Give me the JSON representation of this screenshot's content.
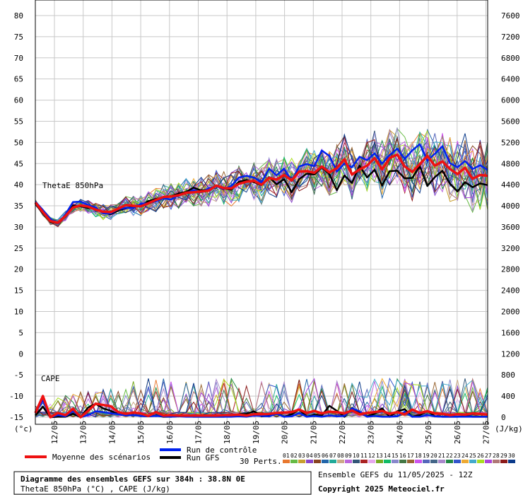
{
  "chart_data": {
    "type": "line",
    "grid": true,
    "left_axis": {
      "unit_label": "(°c)",
      "ticks": [
        -15,
        -10,
        -5,
        0,
        5,
        10,
        15,
        20,
        25,
        30,
        35,
        40,
        45,
        50,
        55,
        60,
        65,
        70,
        75,
        80
      ],
      "range": [
        -15,
        80
      ]
    },
    "right_axis": {
      "unit_label": "(J/kg)",
      "ticks": [
        0,
        400,
        800,
        1200,
        1600,
        2000,
        2400,
        2800,
        3200,
        3600,
        4000,
        4400,
        4800,
        5200,
        5600,
        6000,
        6400,
        6800,
        7200,
        7600
      ],
      "range": [
        -800,
        7600
      ]
    },
    "x_dates": [
      "12/05",
      "13/05",
      "14/05",
      "15/05",
      "16/05",
      "17/05",
      "18/05",
      "19/05",
      "20/05",
      "21/05",
      "22/05",
      "23/05",
      "24/05",
      "25/05",
      "26/05",
      "27/05"
    ],
    "panel_labels": {
      "thetae": "ThetaE 850hPa",
      "cape": "CAPE"
    },
    "series": [
      {
        "name": "Moyenne des scénarios",
        "color": "#ee1111",
        "thetae": [
          35.8,
          33.5,
          31.4,
          31.0,
          32.6,
          34.6,
          35.1,
          34.8,
          34.1,
          33.6,
          33.5,
          34.3,
          35.2,
          35.0,
          34.9,
          35.6,
          36.4,
          37.1,
          37.2,
          37.5,
          38.1,
          38.2,
          38.4,
          38.6,
          39.8,
          39.2,
          39.1,
          40.2,
          40.7,
          40.9,
          40.0,
          41.6,
          41.2,
          42.3,
          41.0,
          43.1,
          43.2,
          42.8,
          44.3,
          42.9,
          43.9,
          46.0,
          42.4,
          43.6,
          44.5,
          46.3,
          43.6,
          46.3,
          47.1,
          44.3,
          43.0,
          44.9,
          46.8,
          44.5,
          45.5,
          43.7,
          42.5,
          44.0,
          41.4,
          42.3,
          42.1
        ],
        "cape": [
          -14,
          -10,
          -15,
          -14,
          -14.5,
          -13,
          -15,
          -13.5,
          -11.8,
          -12.1,
          -12.4,
          -13.8,
          -14.2,
          -13.9,
          -14.1,
          -14.7,
          -13.8,
          -14.6,
          -14.5,
          -14.6,
          -14.6,
          -14.6,
          -14.6,
          -14.6,
          -14.6,
          -14.5,
          -14.5,
          -14.4,
          -14.6,
          -14.3,
          -14.3,
          -14.2,
          -14.0,
          -13.9,
          -13.8,
          -13.2,
          -14.0,
          -13.5,
          -14.1,
          -13.7,
          -13.8,
          -14.1,
          -13.4,
          -14.3,
          -14.0,
          -13.8,
          -13.5,
          -14.2,
          -13.8,
          -14.3,
          -13.2,
          -14.0,
          -13.6,
          -14.1,
          -14.2,
          -14.5,
          -14.3,
          -14.4,
          -14.1,
          -14.2,
          -14.4
        ]
      },
      {
        "name": "Run de contrôle",
        "color": "#0022ee",
        "thetae": [
          36.0,
          34.0,
          31.9,
          30.8,
          33.0,
          35.9,
          36.0,
          35.2,
          34.6,
          33.2,
          33.2,
          34.2,
          34.5,
          34.5,
          35.5,
          35.6,
          36.1,
          36.8,
          36.5,
          37.5,
          38.0,
          38.7,
          38.2,
          39.1,
          39.6,
          39.0,
          39.7,
          41.7,
          42.1,
          41.7,
          40.5,
          43.8,
          42.2,
          43.8,
          40.8,
          44.3,
          44.9,
          44.4,
          48.1,
          46.8,
          43.1,
          45.0,
          44.1,
          46.6,
          45.8,
          47.4,
          45.0,
          47.0,
          48.5,
          46.1,
          48.1,
          49.6,
          45.7,
          47.3,
          49.1,
          45.1,
          44.1,
          45.6,
          43.7,
          44.6,
          43.5
        ],
        "cape": [
          -14,
          -11,
          -15,
          -14.5,
          -14.8,
          -13.5,
          -15,
          -14.5,
          -13.6,
          -13.8,
          -14.1,
          -14.3,
          -14.6,
          -14.5,
          -14.7,
          -14.8,
          -14.7,
          -14.8,
          -14.9,
          -14.8,
          -14.9,
          -14.9,
          -14.9,
          -14.9,
          -14.9,
          -14.9,
          -14.9,
          -14.8,
          -14.9,
          -14.6,
          -14.7,
          -14.8,
          -14.2,
          -14.9,
          -14.8,
          -14.0,
          -14.9,
          -14.7,
          -14.9,
          -14.6,
          -14.8,
          -14.7,
          -12.9,
          -13.6,
          -14.9,
          -14.7,
          -14.9,
          -14.9,
          -14.8,
          -13.7,
          -14.9,
          -14.9,
          -14.5,
          -14.8,
          -14.9,
          -14.9,
          -14.9,
          -14.9,
          -14.9,
          -14.9,
          -14.9
        ]
      },
      {
        "name": "Run GFS",
        "color": "#000000",
        "thetae": [
          35.5,
          33.2,
          31.2,
          30.9,
          32.8,
          35.0,
          34.9,
          34.5,
          34.4,
          33.4,
          33.0,
          33.9,
          34.4,
          34.8,
          35.0,
          36.1,
          36.6,
          37.0,
          37.3,
          37.9,
          38.3,
          39.3,
          38.6,
          38.9,
          39.8,
          39.1,
          38.8,
          40.7,
          41.1,
          40.6,
          39.9,
          41.8,
          40.1,
          41.3,
          38.2,
          41.3,
          42.6,
          42.4,
          44.1,
          42.5,
          38.7,
          42.2,
          40.4,
          44.5,
          41.7,
          43.5,
          39.8,
          43.2,
          43.3,
          41.5,
          41.6,
          44.4,
          39.7,
          41.8,
          43.3,
          40.2,
          38.4,
          40.6,
          39.4,
          40.3,
          39.9
        ],
        "cape": [
          -14.6,
          -12.5,
          -15,
          -14.9,
          -14.9,
          -14.2,
          -15,
          -12.7,
          -11.8,
          -12.9,
          -13.5,
          -14.3,
          -14.6,
          -14.5,
          -14.7,
          -14.8,
          -14.6,
          -14.9,
          -14.9,
          -14.8,
          -14.8,
          -14.9,
          -14.9,
          -14.9,
          -14.9,
          -14.9,
          -14.8,
          -14.3,
          -14.2,
          -13.6,
          -14.8,
          -14.7,
          -14.0,
          -14.9,
          -14.3,
          -13.2,
          -14.9,
          -14.4,
          -14.6,
          -12.3,
          -13.5,
          -14.9,
          -12.8,
          -13.9,
          -14.8,
          -14.2,
          -12.9,
          -14.9,
          -13.6,
          -13.1,
          -14.9,
          -14.5,
          -13.5,
          -14.8,
          -14.9,
          -14.9,
          -14.9,
          -14.8,
          -14.9,
          -14.9,
          -14.9
        ]
      }
    ],
    "perturbations": {
      "count_label": "30 Perts.",
      "colors": [
        "#e8782e",
        "#66bb44",
        "#c8a030",
        "#8844cc",
        "#884422",
        "#2266aa",
        "#22aa99",
        "#ccaa88",
        "#bb66dd",
        "#335577",
        "#aa2222",
        "#e6a8ee",
        "#77aa22",
        "#11bb66",
        "#8888cc",
        "#447744",
        "#996633",
        "#cc55ee",
        "#5566bb",
        "#446688",
        "#aa88cc",
        "#228844",
        "#3355cc",
        "#eeaa33",
        "#44aacc",
        "#aadd22",
        "#aa44dd",
        "#b07777",
        "#8b1a1a",
        "#0a3a8a"
      ]
    }
  },
  "legend": {
    "mean_label": "Moyenne des scénarios",
    "control_label": "Run de contrôle",
    "gfs_label": "Run GFS",
    "pert_numbers": [
      "01",
      "02",
      "03",
      "04",
      "05",
      "06",
      "07",
      "08",
      "09",
      "10",
      "11",
      "12",
      "13",
      "14",
      "15",
      "16",
      "17",
      "18",
      "19",
      "20",
      "21",
      "22",
      "23",
      "24",
      "25",
      "26",
      "27",
      "28",
      "29",
      "30"
    ]
  },
  "footer": {
    "title": "Diagramme des ensembles GEFS sur 384h : 38.8N 0E",
    "subtitle": "ThetaE 850hPa (°C) , CAPE (J/kg)",
    "run_info": "Ensemble GEFS du 11/05/2025 - 12Z",
    "copyright": "Copyright 2025 Meteociel.fr"
  }
}
